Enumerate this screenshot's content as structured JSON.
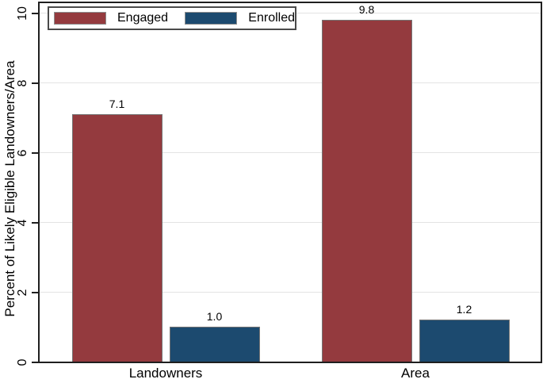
{
  "chart_data": {
    "type": "bar",
    "title": "",
    "categories": [
      "Landowners",
      "Area"
    ],
    "series": [
      {
        "name": "Engaged",
        "color": "#943a3e",
        "values": [
          7.1,
          9.8
        ]
      },
      {
        "name": "Enrolled",
        "color": "#1c4a6f",
        "values": [
          1.0,
          1.2
        ]
      }
    ],
    "xlabel": "",
    "ylabel": "Percent of Likely Eligible Landowners/Area",
    "ylim": [
      0,
      10
    ],
    "yticks": [
      "0",
      "2",
      "4",
      "6",
      "8",
      "10"
    ],
    "grid": true,
    "legend_position": "top-left",
    "bar_value_label_decimals": 1
  },
  "styles": {
    "background": "#ffffff",
    "axis_color": "#1f1f1f",
    "grid_color": "#e3e3e3",
    "bar_border_color": "#757575",
    "legend_border_color": "#4a4a4a",
    "text_color": "#000000"
  }
}
